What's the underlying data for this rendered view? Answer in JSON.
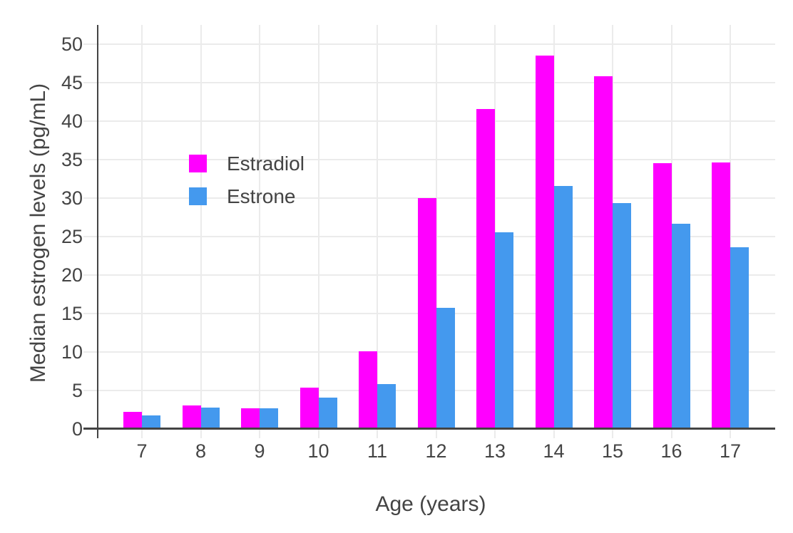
{
  "figure": {
    "background": "#ffffff",
    "text_color": "#444444",
    "grid_color": "#ebebeb",
    "axis_color": "#444444"
  },
  "legend": {
    "items": [
      {
        "label": "Estradiol",
        "color": "#FF00FF"
      },
      {
        "label": "Estrone",
        "color": "#4499EE"
      }
    ]
  },
  "chart_data": {
    "type": "bar",
    "title": "",
    "xlabel": "Age (years)",
    "ylabel": "Median estrogen levels (pg/mL)",
    "categories": [
      7,
      8,
      9,
      10,
      11,
      12,
      13,
      14,
      15,
      16,
      17
    ],
    "series": [
      {
        "name": "Estradiol",
        "color": "#FF00FF",
        "values": [
          2.2,
          3.0,
          2.6,
          5.3,
          10.1,
          30.0,
          41.6,
          48.5,
          45.8,
          34.5,
          34.6
        ]
      },
      {
        "name": "Estrone",
        "color": "#4499EE",
        "values": [
          1.7,
          2.7,
          2.6,
          4.0,
          5.8,
          15.7,
          25.5,
          31.6,
          29.3,
          26.6,
          23.6
        ]
      }
    ],
    "ylim": [
      0,
      52.5
    ],
    "yticks": [
      0,
      5,
      10,
      15,
      20,
      25,
      30,
      35,
      40,
      45,
      50
    ],
    "grid": true,
    "legend_position": "inside-upper-left",
    "bar_orientation": "vertical",
    "group_layout": "grouped"
  }
}
